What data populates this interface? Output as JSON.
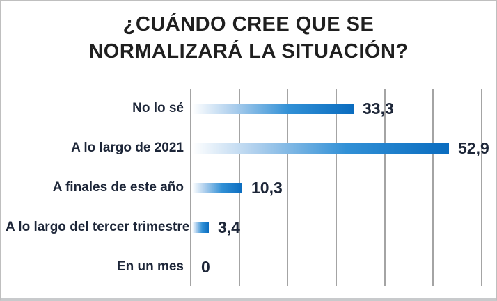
{
  "chart_data": {
    "type": "bar",
    "orientation": "horizontal",
    "title": "¿CUÁNDO CREE QUE SE NORMALIZARÁ LA SITUACIÓN?",
    "title_lines": [
      "¿CUÁNDO CREE QUE SE",
      "NORMALIZARÁ LA SITUACIÓN?"
    ],
    "categories": [
      "No lo sé",
      "A lo largo de 2021",
      "A finales de este año",
      "A lo largo del tercer trimestre",
      "En un mes"
    ],
    "values": [
      33.3,
      52.9,
      10.3,
      3.4,
      0
    ],
    "value_labels": [
      "33,3",
      "52,9",
      "10,3",
      "3,4",
      "0"
    ],
    "xlabel": "",
    "ylabel": "",
    "xlim": [
      0,
      60
    ],
    "gridline_step": 10,
    "grid": true,
    "legend": false,
    "colors": {
      "bar_gradient_start": "#ffffff",
      "bar_gradient_mid": "#3190d6",
      "bar_gradient_end": "#0a6cbf",
      "gridline": "#a4a4a4",
      "label_text": "#1d2638",
      "title_text": "#1f1f1f",
      "frame_border": "#bfbfbf"
    }
  }
}
